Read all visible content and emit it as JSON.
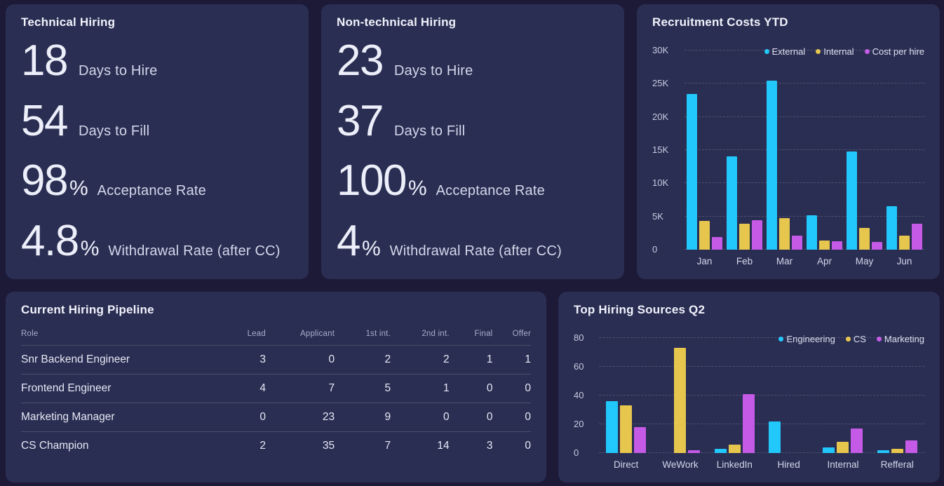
{
  "theme": {
    "page_bg": "#1D1A38",
    "card_bg": "#2A2E52",
    "series_cyan": "#22C7FB",
    "series_yellow": "#E7C64E",
    "series_magenta": "#C45AE6"
  },
  "cards": {
    "technical": {
      "title": "Technical Hiring",
      "metrics": [
        {
          "value": "18",
          "suffix": "",
          "label": "Days to Hire"
        },
        {
          "value": "54",
          "suffix": "",
          "label": "Days to Fill"
        },
        {
          "value": "98",
          "suffix": "%",
          "label": "Acceptance Rate"
        },
        {
          "value": "4.8",
          "suffix": "%",
          "label": "Withdrawal Rate (after CC)"
        }
      ]
    },
    "non_technical": {
      "title": "Non-technical Hiring",
      "metrics": [
        {
          "value": "23",
          "suffix": "",
          "label": "Days to Hire"
        },
        {
          "value": "37",
          "suffix": "",
          "label": "Days to Fill"
        },
        {
          "value": "100",
          "suffix": "%",
          "label": "Acceptance Rate"
        },
        {
          "value": "4",
          "suffix": "%",
          "label": "Withdrawal Rate (after CC)"
        }
      ]
    },
    "recruitment_costs": {
      "title": "Recruitment Costs YTD"
    },
    "pipeline": {
      "title": "Current Hiring Pipeline",
      "columns": [
        "Role",
        "Lead",
        "Applicant",
        "1st int.",
        "2nd int.",
        "Final",
        "Offer"
      ],
      "rows": [
        {
          "role": "Snr Backend Engineer",
          "values": [
            3,
            0,
            2,
            2,
            1,
            1
          ]
        },
        {
          "role": "Frontend Engineer",
          "values": [
            4,
            7,
            5,
            1,
            0,
            0
          ]
        },
        {
          "role": "Marketing Manager",
          "values": [
            0,
            23,
            9,
            0,
            0,
            0
          ]
        },
        {
          "role": "CS Champion",
          "values": [
            2,
            35,
            7,
            14,
            3,
            0
          ]
        }
      ]
    },
    "hiring_sources": {
      "title": "Top Hiring Sources Q2"
    }
  },
  "chart_data": [
    {
      "id": "chart-costs",
      "type": "bar",
      "title": "Recruitment Costs YTD",
      "categories": [
        "Jan",
        "Feb",
        "Mar",
        "Apr",
        "May",
        "Jun"
      ],
      "series": [
        {
          "name": "External",
          "color": "#22C7FB",
          "values": [
            23500,
            14000,
            25500,
            5200,
            14800,
            6500
          ]
        },
        {
          "name": "Internal",
          "color": "#E7C64E",
          "values": [
            4300,
            3900,
            4800,
            1400,
            3300,
            2100
          ]
        },
        {
          "name": "Cost per hire",
          "color": "#C45AE6",
          "values": [
            1900,
            4400,
            2100,
            1300,
            1200,
            3900
          ]
        }
      ],
      "xlabel": "",
      "ylabel": "",
      "ylim": [
        0,
        30000
      ],
      "yticks": [
        {
          "value": 0,
          "label": "0"
        },
        {
          "value": 5000,
          "label": "5K"
        },
        {
          "value": 10000,
          "label": "10K"
        },
        {
          "value": 15000,
          "label": "15K"
        },
        {
          "value": 20000,
          "label": "20K"
        },
        {
          "value": 25000,
          "label": "25K"
        },
        {
          "value": 30000,
          "label": "30K"
        }
      ],
      "grid": true,
      "legend_position": "top-right"
    },
    {
      "id": "chart-sources",
      "type": "bar",
      "title": "Top Hiring Sources Q2",
      "categories": [
        "Direct",
        "WeWork",
        "LinkedIn",
        "Hired",
        "Internal",
        "Refferal"
      ],
      "series": [
        {
          "name": "Engineering",
          "color": "#22C7FB",
          "values": [
            36,
            0,
            3,
            22,
            4,
            2
          ]
        },
        {
          "name": "CS",
          "color": "#E7C64E",
          "values": [
            33,
            73,
            6,
            0,
            8,
            3
          ]
        },
        {
          "name": "Marketing",
          "color": "#C45AE6",
          "values": [
            18,
            2,
            41,
            0,
            17,
            9
          ]
        }
      ],
      "xlabel": "",
      "ylabel": "",
      "ylim": [
        0,
        80
      ],
      "yticks": [
        {
          "value": 0,
          "label": "0"
        },
        {
          "value": 20,
          "label": "20"
        },
        {
          "value": 40,
          "label": "40"
        },
        {
          "value": 60,
          "label": "60"
        },
        {
          "value": 80,
          "label": "80"
        }
      ],
      "grid": true,
      "legend_position": "top-right"
    }
  ]
}
